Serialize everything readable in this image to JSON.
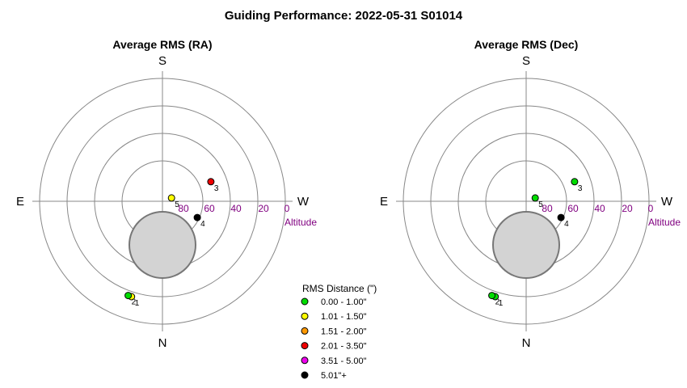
{
  "title": "Guiding Performance: 2022-05-31 S01014",
  "legend": {
    "title": "RMS Distance (\")",
    "items": [
      {
        "label": "0.00 - 1.00\"",
        "color": "#00dd00"
      },
      {
        "label": "1.01 - 1.50\"",
        "color": "#ffff00"
      },
      {
        "label": "1.51 - 2.00\"",
        "color": "#ff9900"
      },
      {
        "label": "2.01 - 3.50\"",
        "color": "#ee0000"
      },
      {
        "label": "3.51 - 5.00\"",
        "color": "#ee00ee"
      },
      {
        "label": "5.01\"+",
        "color": "#000000"
      }
    ]
  },
  "chart_data": [
    {
      "type": "scatter",
      "projection": "polar-sky",
      "title": "Average RMS (RA)",
      "directions": {
        "top": "S",
        "bottom": "N",
        "left": "E",
        "right": "W"
      },
      "altitude_ticks": [
        "80",
        "60",
        "40",
        "20",
        "0"
      ],
      "altitude_label": "Altitude",
      "points": [
        {
          "label": "1",
          "alt": 17,
          "az": 108,
          "color": "#ffff00"
        },
        {
          "label": "2",
          "alt": 17,
          "az": 110,
          "color": "#00dd00"
        },
        {
          "label": "3",
          "alt": 52,
          "az": -22,
          "color": "#ee0000"
        },
        {
          "label": "4",
          "alt": 62,
          "az": 25,
          "color": "#000000"
        },
        {
          "label": "5",
          "alt": 83,
          "az": -20,
          "color": "#ffff00"
        }
      ]
    },
    {
      "type": "scatter",
      "projection": "polar-sky",
      "title": "Average RMS (Dec)",
      "directions": {
        "top": "S",
        "bottom": "N",
        "left": "E",
        "right": "W"
      },
      "altitude_ticks": [
        "80",
        "60",
        "40",
        "20",
        "0"
      ],
      "altitude_label": "Altitude",
      "points": [
        {
          "label": "1",
          "alt": 17,
          "az": 108,
          "color": "#00dd00"
        },
        {
          "label": "2",
          "alt": 17,
          "az": 110,
          "color": "#00dd00"
        },
        {
          "label": "3",
          "alt": 52,
          "az": -22,
          "color": "#00dd00"
        },
        {
          "label": "4",
          "alt": 62,
          "az": 25,
          "color": "#000000"
        },
        {
          "label": "5",
          "alt": 83,
          "az": -20,
          "color": "#00dd00"
        }
      ]
    }
  ]
}
